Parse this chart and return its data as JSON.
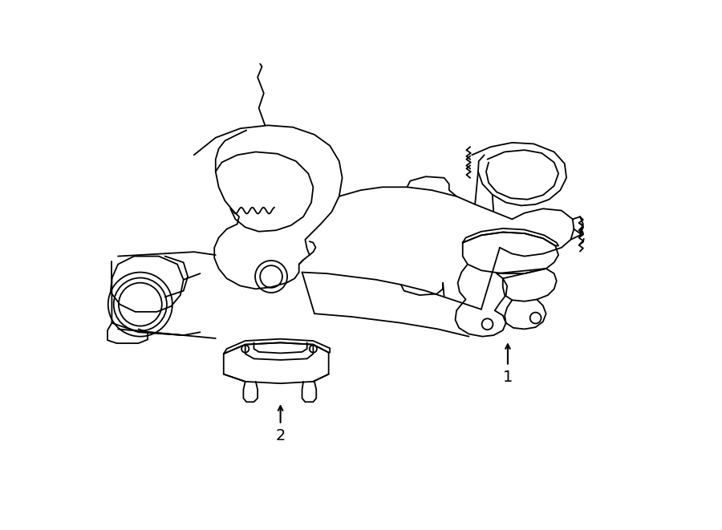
{
  "background_color": "#ffffff",
  "line_color": "#000000",
  "line_width": 1.3,
  "figure_width": 9.0,
  "figure_height": 6.61,
  "dpi": 100,
  "label_1": "1",
  "label_2": "2",
  "label_fontsize": 14
}
